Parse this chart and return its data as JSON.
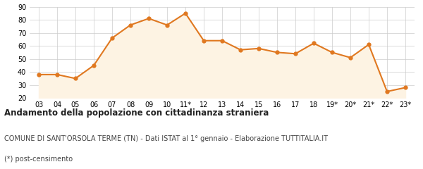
{
  "x_labels": [
    "03",
    "04",
    "05",
    "06",
    "07",
    "08",
    "09",
    "10",
    "11*",
    "12",
    "13",
    "14",
    "15",
    "16",
    "17",
    "18",
    "19*",
    "20*",
    "21*",
    "22*",
    "23*"
  ],
  "values": [
    38,
    38,
    35,
    45,
    66,
    76,
    81,
    76,
    85,
    64,
    64,
    57,
    58,
    55,
    54,
    62,
    55,
    51,
    61,
    25,
    28
  ],
  "line_color": "#e07820",
  "fill_color": "#fdf3e3",
  "marker": "o",
  "marker_size": 3.5,
  "line_width": 1.5,
  "ylim": [
    20,
    90
  ],
  "yticks": [
    20,
    30,
    40,
    50,
    60,
    70,
    80,
    90
  ],
  "grid_color": "#cccccc",
  "background_color": "#ffffff",
  "title": "Andamento della popolazione con cittadinanza straniera",
  "subtitle": "COMUNE DI SANT'ORSOLA TERME (TN) - Dati ISTAT al 1° gennaio - Elaborazione TUTTITALIA.IT",
  "footnote": "(*) post-censimento",
  "title_fontsize": 8.5,
  "subtitle_fontsize": 7.0,
  "footnote_fontsize": 7.0,
  "tick_fontsize": 7
}
